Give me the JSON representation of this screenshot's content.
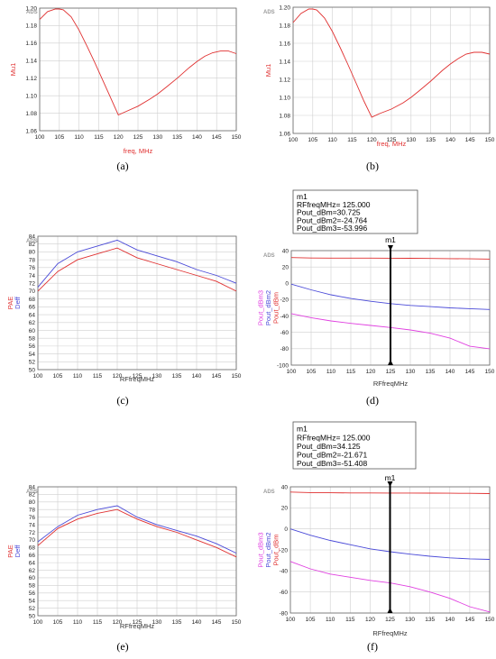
{
  "colors": {
    "red": "#e03030",
    "blue": "#4a4ad8",
    "magenta": "#e040e0",
    "grid": "#cfcfcf",
    "axis": "#666666",
    "marker": "#000000"
  },
  "chart_data": [
    {
      "type": "line",
      "caption": "(a)",
      "watermark": "ADS",
      "xlabel": "freq, MHz",
      "ylabel": "Mu1",
      "xlim": [
        100,
        150
      ],
      "ylim": [
        1.06,
        1.2
      ],
      "xticks": [
        "100",
        "105",
        "110",
        "115",
        "120",
        "125",
        "130",
        "135",
        "140",
        "145",
        "150"
      ],
      "yticks": [
        "1.20",
        "1.18",
        "1.16",
        "1.14",
        "1.12",
        "1.10",
        "1.08",
        "1.06"
      ],
      "series": [
        {
          "name": "Mu1",
          "color": "#e03030",
          "x": [
            100,
            102,
            104,
            105,
            106,
            108,
            110,
            112,
            114,
            116,
            118,
            120,
            122,
            125,
            128,
            130,
            132,
            135,
            138,
            140,
            142,
            144,
            146,
            147,
            148,
            150
          ],
          "y": [
            1.187,
            1.196,
            1.199,
            1.199,
            1.198,
            1.19,
            1.175,
            1.157,
            1.138,
            1.118,
            1.098,
            1.078,
            1.082,
            1.088,
            1.096,
            1.102,
            1.109,
            1.12,
            1.132,
            1.139,
            1.145,
            1.149,
            1.151,
            1.151,
            1.151,
            1.148
          ]
        }
      ]
    },
    {
      "type": "line",
      "caption": "(b)",
      "watermark": "ADS",
      "xlabel": "freq, MHz",
      "ylabel": "Mu1",
      "xlim": [
        100,
        150
      ],
      "ylim": [
        1.06,
        1.2
      ],
      "xticks": [
        "100",
        "105",
        "110",
        "115",
        "120",
        "125",
        "130",
        "135",
        "140",
        "145",
        "150"
      ],
      "yticks": [
        "1.20",
        "1.18",
        "1.16",
        "1.14",
        "1.12",
        "1.10",
        "1.08",
        "1.06"
      ],
      "series": [
        {
          "name": "Mu1",
          "color": "#e03030",
          "x": [
            100,
            102,
            104,
            105,
            106,
            108,
            110,
            112,
            114,
            116,
            118,
            120,
            122,
            125,
            128,
            130,
            132,
            135,
            138,
            140,
            142,
            144,
            146,
            147,
            148,
            150
          ],
          "y": [
            1.183,
            1.193,
            1.198,
            1.198,
            1.197,
            1.188,
            1.173,
            1.155,
            1.136,
            1.116,
            1.096,
            1.078,
            1.082,
            1.087,
            1.094,
            1.1,
            1.107,
            1.118,
            1.13,
            1.137,
            1.143,
            1.148,
            1.15,
            1.15,
            1.15,
            1.148
          ]
        }
      ]
    },
    {
      "type": "line",
      "caption": "(c)",
      "watermark": "ADS",
      "xlabel": "RFfreqMHz",
      "ylabel_parts": [
        "PAE",
        "Deff"
      ],
      "xlim": [
        100,
        150
      ],
      "ylim": [
        50,
        84
      ],
      "xticks": [
        "100",
        "105",
        "110",
        "115",
        "120",
        "125",
        "130",
        "135",
        "140",
        "145",
        "150"
      ],
      "yticks": [
        "84",
        "82",
        "80",
        "78",
        "76",
        "74",
        "72",
        "70",
        "68",
        "66",
        "64",
        "62",
        "60",
        "58",
        "56",
        "54",
        "52",
        "50"
      ],
      "series": [
        {
          "name": "Deff",
          "color": "#4a4ad8",
          "x": [
            100,
            105,
            110,
            115,
            120,
            125,
            130,
            135,
            140,
            145,
            150
          ],
          "y": [
            71.0,
            77.0,
            80.0,
            81.5,
            83.0,
            80.5,
            79.0,
            77.5,
            75.5,
            74.0,
            72.0
          ]
        },
        {
          "name": "PAE",
          "color": "#e03030",
          "x": [
            100,
            105,
            110,
            115,
            120,
            125,
            130,
            135,
            140,
            145,
            150
          ],
          "y": [
            70.0,
            75.0,
            78.0,
            79.5,
            81.0,
            78.5,
            77.0,
            75.5,
            74.0,
            72.5,
            70.0
          ]
        }
      ]
    },
    {
      "type": "line",
      "caption": "(d)",
      "watermark": "ADS",
      "xlabel": "RFfreqMHz",
      "ylabel_parts": [
        "Pout_dBm3",
        "Pout_dBm2",
        "Pout_dBm"
      ],
      "xlim": [
        100,
        150
      ],
      "ylim": [
        -100,
        40
      ],
      "xticks": [
        "100",
        "105",
        "110",
        "115",
        "120",
        "125",
        "130",
        "135",
        "140",
        "145",
        "150"
      ],
      "yticks": [
        "40",
        "20",
        "0",
        "-20",
        "-40",
        "-60",
        "-80",
        "-100"
      ],
      "series": [
        {
          "name": "Pout_dBm",
          "color": "#e03030",
          "x": [
            100,
            105,
            110,
            115,
            120,
            125,
            130,
            135,
            140,
            145,
            150
          ],
          "y": [
            31.5,
            31.0,
            30.9,
            30.8,
            30.8,
            30.7,
            30.6,
            30.4,
            30.2,
            30.0,
            29.6
          ]
        },
        {
          "name": "Pout_dBm2",
          "color": "#4a4ad8",
          "x": [
            100,
            105,
            110,
            115,
            120,
            125,
            130,
            135,
            140,
            145,
            150
          ],
          "y": [
            -1.0,
            -8.0,
            -14.0,
            -18.5,
            -22.0,
            -24.8,
            -27.0,
            -28.5,
            -30.0,
            -31.0,
            -32.0
          ]
        },
        {
          "name": "Pout_dBm3",
          "color": "#e040e0",
          "x": [
            100,
            105,
            110,
            115,
            120,
            125,
            130,
            135,
            140,
            145,
            150
          ],
          "y": [
            -37.0,
            -42.0,
            -46.0,
            -49.0,
            -51.5,
            -54.0,
            -57.0,
            -61.0,
            -67.0,
            -77.0,
            -80.0
          ]
        }
      ],
      "marker": {
        "name": "m1",
        "x": 125,
        "lines": [
          "m1",
          "RFfreqMHz= 125.000",
          "Pout_dBm=30.725",
          "Pout_dBm2=-24.764",
          "Pout_dBm3=-53.996"
        ]
      }
    },
    {
      "type": "line",
      "caption": "(e)",
      "watermark": "ADS",
      "xlabel": "RFfreqMHz",
      "ylabel_parts": [
        "PAE",
        "Deff"
      ],
      "xlim": [
        100,
        150
      ],
      "ylim": [
        50,
        84
      ],
      "xticks": [
        "100",
        "105",
        "110",
        "115",
        "120",
        "125",
        "130",
        "135",
        "140",
        "145",
        "150"
      ],
      "yticks": [
        "84",
        "82",
        "80",
        "78",
        "76",
        "74",
        "72",
        "70",
        "68",
        "66",
        "64",
        "62",
        "60",
        "58",
        "56",
        "54",
        "52",
        "50"
      ],
      "series": [
        {
          "name": "Deff",
          "color": "#4a4ad8",
          "x": [
            100,
            105,
            110,
            115,
            120,
            125,
            130,
            135,
            140,
            145,
            150
          ],
          "y": [
            69.5,
            73.5,
            76.5,
            78.0,
            79.0,
            76.0,
            74.0,
            72.5,
            71.0,
            69.0,
            66.5
          ]
        },
        {
          "name": "PAE",
          "color": "#e03030",
          "x": [
            100,
            105,
            110,
            115,
            120,
            125,
            130,
            135,
            140,
            145,
            150
          ],
          "y": [
            68.5,
            73.0,
            75.5,
            77.0,
            78.0,
            75.5,
            73.5,
            72.0,
            70.0,
            68.0,
            65.5
          ]
        }
      ]
    },
    {
      "type": "line",
      "caption": "(f)",
      "watermark": "ADS",
      "xlabel": "RFfreqMHz",
      "ylabel_parts": [
        "Pout_dBm3",
        "Pout_dBm2",
        "Pout_dBm"
      ],
      "xlim": [
        100,
        150
      ],
      "ylim": [
        -80,
        40
      ],
      "xticks": [
        "100",
        "105",
        "110",
        "115",
        "120",
        "125",
        "130",
        "135",
        "140",
        "145",
        "150"
      ],
      "yticks": [
        "40",
        "20",
        "0",
        "-20",
        "-40",
        "-60",
        "-80"
      ],
      "series": [
        {
          "name": "Pout_dBm",
          "color": "#e03030",
          "x": [
            100,
            105,
            110,
            115,
            120,
            125,
            130,
            135,
            140,
            145,
            150
          ],
          "y": [
            35.0,
            34.5,
            34.3,
            34.2,
            34.2,
            34.1,
            34.1,
            34.0,
            33.9,
            33.8,
            33.6
          ]
        },
        {
          "name": "Pout_dBm2",
          "color": "#4a4ad8",
          "x": [
            100,
            105,
            110,
            115,
            120,
            125,
            130,
            135,
            140,
            145,
            150
          ],
          "y": [
            0.0,
            -6.0,
            -11.0,
            -15.0,
            -19.0,
            -21.7,
            -24.0,
            -26.0,
            -27.5,
            -28.5,
            -29.0
          ]
        },
        {
          "name": "Pout_dBm3",
          "color": "#e040e0",
          "x": [
            100,
            105,
            110,
            115,
            120,
            125,
            130,
            135,
            140,
            145,
            150
          ],
          "y": [
            -31.0,
            -38.0,
            -43.0,
            -46.0,
            -49.0,
            -51.4,
            -55.0,
            -60.0,
            -66.0,
            -74.0,
            -79.0
          ]
        }
      ],
      "marker": {
        "name": "m1",
        "x": 125,
        "lines": [
          "m1",
          "RFfreqMHz= 125.000",
          "Pout_dBm=34.125",
          "Pout_dBm2=-21.671",
          "Pout_dBm3=-51.408"
        ]
      }
    }
  ]
}
